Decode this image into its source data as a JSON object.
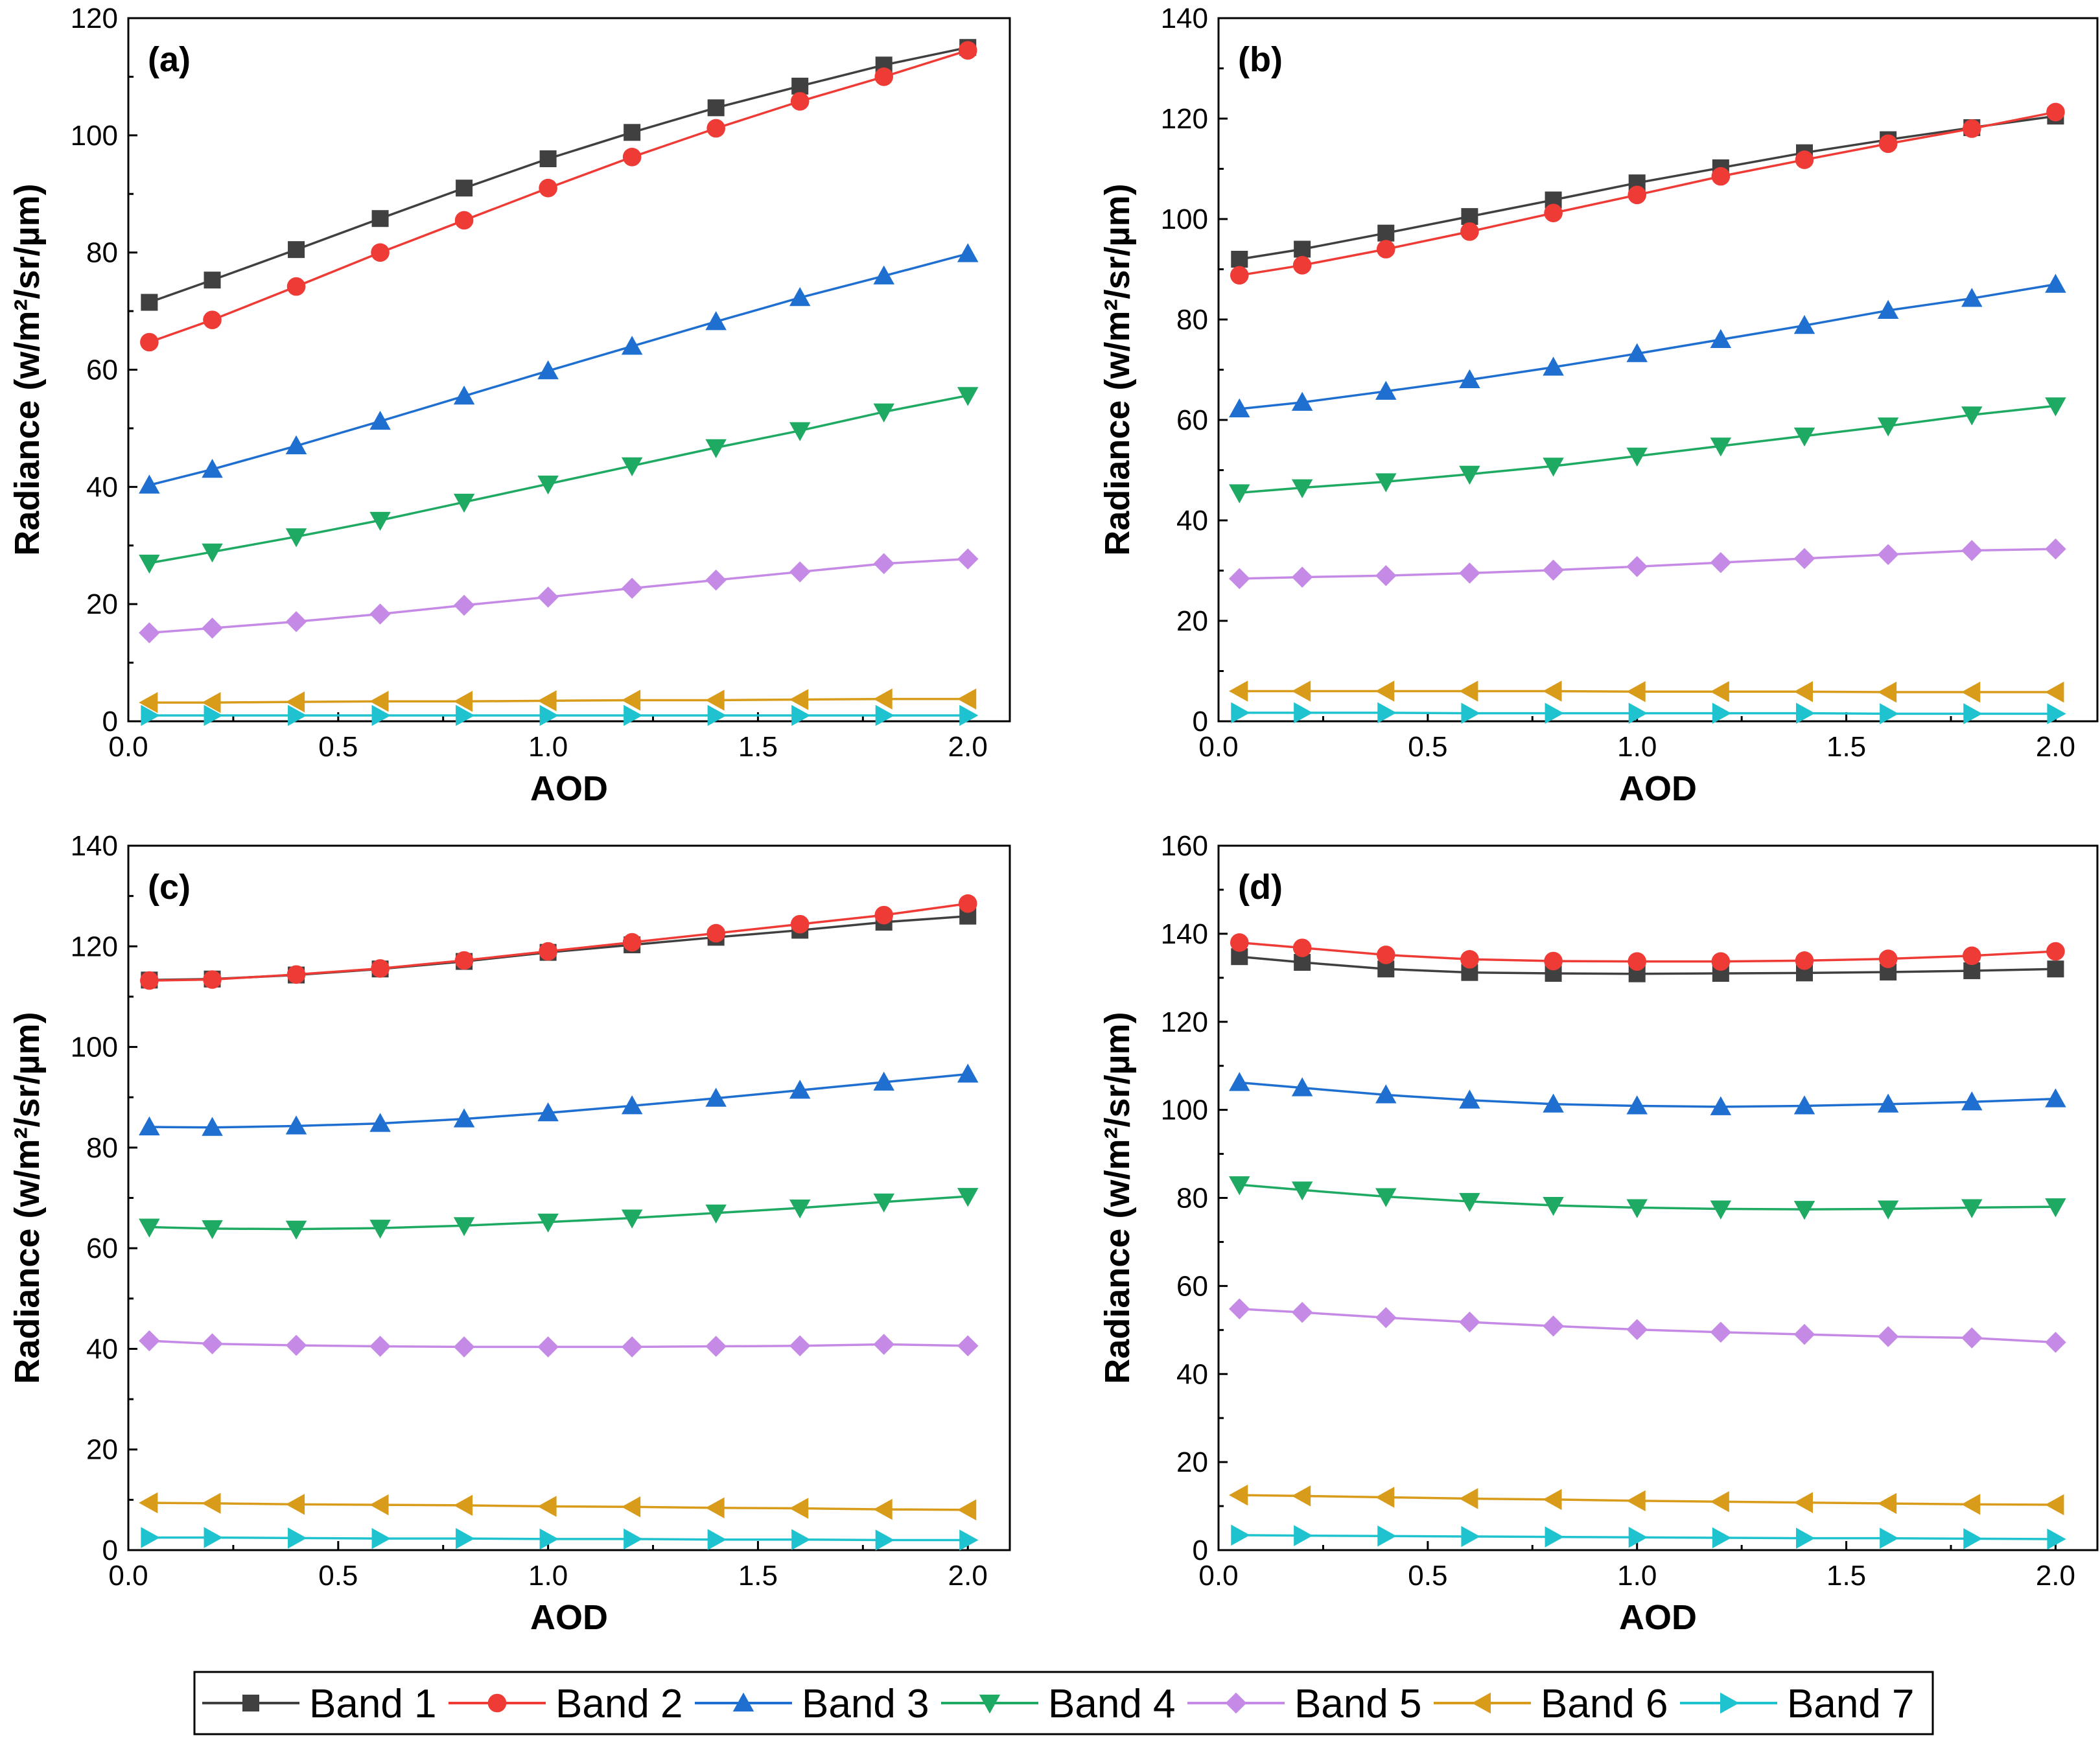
{
  "figure": {
    "band_colors": {
      "Band 1": "#404040",
      "Band 2": "#ef3b36",
      "Band 3": "#1f6fd1",
      "Band 4": "#1faa63",
      "Band 5": "#c58ae6",
      "Band 6": "#d99c1a",
      "Band 7": "#1ec3cf"
    },
    "legend": [
      "Band 1",
      "Band 2",
      "Band 3",
      "Band 4",
      "Band 5",
      "Band 6",
      "Band 7"
    ],
    "markers": {
      "Band 1": "square",
      "Band 2": "circle",
      "Band 3": "triangle-up",
      "Band 4": "triangle-down",
      "Band 5": "diamond",
      "Band 6": "triangle-left",
      "Band 7": "triangle-right"
    }
  },
  "chart_data": [
    {
      "type": "line",
      "panel": "(a)",
      "xlabel": "AOD",
      "ylabel": "Radiance (w/m²/sr/µm)",
      "xlim": [
        0,
        2.1
      ],
      "ylim": [
        0,
        120
      ],
      "xticks": [
        0.0,
        0.5,
        1.0,
        1.5,
        2.0
      ],
      "xtick_labels": [
        "0.0",
        "0.5",
        "1.0",
        "1.5",
        "2.0"
      ],
      "yticks": [
        0,
        20,
        40,
        60,
        80,
        100,
        120
      ],
      "ytick_labels": [
        "0",
        "20",
        "40",
        "60",
        "80",
        "100",
        "120"
      ],
      "x": [
        0.05,
        0.2,
        0.4,
        0.6,
        0.8,
        1.0,
        1.2,
        1.4,
        1.6,
        1.8,
        2.0
      ],
      "series": [
        {
          "name": "Band 1",
          "values": [
            71.5,
            75.3,
            80.5,
            85.8,
            91.0,
            96.0,
            100.5,
            104.7,
            108.4,
            112.0,
            115.0
          ]
        },
        {
          "name": "Band 2",
          "values": [
            64.7,
            68.5,
            74.2,
            80.0,
            85.5,
            91.0,
            96.3,
            101.2,
            105.8,
            110.0,
            114.5
          ]
        },
        {
          "name": "Band 3",
          "values": [
            40.3,
            43.0,
            47.0,
            51.2,
            55.5,
            59.8,
            64.0,
            68.2,
            72.3,
            76.0,
            79.8
          ]
        },
        {
          "name": "Band 4",
          "values": [
            27.0,
            28.9,
            31.5,
            34.3,
            37.4,
            40.5,
            43.6,
            46.7,
            49.6,
            52.8,
            55.6
          ]
        },
        {
          "name": "Band 5",
          "values": [
            15.1,
            15.9,
            17.0,
            18.3,
            19.8,
            21.2,
            22.7,
            24.1,
            25.5,
            26.9,
            27.7
          ]
        },
        {
          "name": "Band 6",
          "values": [
            3.2,
            3.2,
            3.3,
            3.4,
            3.4,
            3.5,
            3.6,
            3.6,
            3.7,
            3.8,
            3.8
          ]
        },
        {
          "name": "Band 7",
          "values": [
            1.0,
            1.0,
            1.0,
            1.0,
            1.0,
            1.0,
            1.0,
            1.0,
            1.0,
            1.0,
            1.0
          ]
        }
      ]
    },
    {
      "type": "line",
      "panel": "(b)",
      "xlabel": "AOD",
      "ylabel": "Radiance (w/m²/sr/µm)",
      "xlim": [
        0,
        2.1
      ],
      "ylim": [
        0,
        140
      ],
      "xticks": [
        0.0,
        0.5,
        1.0,
        1.5,
        2.0
      ],
      "xtick_labels": [
        "0.0",
        "0.5",
        "1.0",
        "1.5",
        "2.0"
      ],
      "yticks": [
        0,
        20,
        40,
        60,
        80,
        100,
        120,
        140
      ],
      "ytick_labels": [
        "0",
        "20",
        "40",
        "60",
        "80",
        "100",
        "120",
        "140"
      ],
      "x": [
        0.05,
        0.2,
        0.4,
        0.6,
        0.8,
        1.0,
        1.2,
        1.4,
        1.6,
        1.8,
        2.0
      ],
      "series": [
        {
          "name": "Band 1",
          "values": [
            92.0,
            94.0,
            97.2,
            100.5,
            103.8,
            107.2,
            110.2,
            113.2,
            115.8,
            118.2,
            120.5
          ]
        },
        {
          "name": "Band 2",
          "values": [
            88.8,
            90.8,
            94.0,
            97.5,
            101.2,
            104.8,
            108.5,
            111.8,
            115.0,
            118.0,
            121.3
          ]
        },
        {
          "name": "Band 3",
          "values": [
            62.2,
            63.5,
            65.7,
            68.0,
            70.5,
            73.2,
            76.0,
            78.8,
            81.8,
            84.2,
            87.0
          ]
        },
        {
          "name": "Band 4",
          "values": [
            45.5,
            46.5,
            47.7,
            49.2,
            50.8,
            52.8,
            54.8,
            56.8,
            58.8,
            61.0,
            62.8
          ]
        },
        {
          "name": "Band 5",
          "values": [
            28.4,
            28.7,
            29.0,
            29.5,
            30.1,
            30.8,
            31.6,
            32.4,
            33.2,
            34.0,
            34.3
          ]
        },
        {
          "name": "Band 6",
          "values": [
            6.0,
            6.0,
            6.0,
            6.0,
            6.0,
            5.9,
            5.9,
            5.9,
            5.8,
            5.8,
            5.8
          ]
        },
        {
          "name": "Band 7",
          "values": [
            1.7,
            1.7,
            1.7,
            1.6,
            1.6,
            1.6,
            1.6,
            1.6,
            1.5,
            1.5,
            1.5
          ]
        }
      ]
    },
    {
      "type": "line",
      "panel": "(c)",
      "xlabel": "AOD",
      "ylabel": "Radiance (w/m²/sr/µm)",
      "xlim": [
        0,
        2.1
      ],
      "ylim": [
        0,
        140
      ],
      "xticks": [
        0.0,
        0.5,
        1.0,
        1.5,
        2.0
      ],
      "xtick_labels": [
        "0.0",
        "0.5",
        "1.0",
        "1.5",
        "2.0"
      ],
      "yticks": [
        0,
        20,
        40,
        60,
        80,
        100,
        120,
        140
      ],
      "ytick_labels": [
        "0",
        "20",
        "40",
        "60",
        "80",
        "100",
        "120",
        "140"
      ],
      "x": [
        0.05,
        0.2,
        0.4,
        0.6,
        0.8,
        1.0,
        1.2,
        1.4,
        1.6,
        1.8,
        2.0
      ],
      "series": [
        {
          "name": "Band 1",
          "values": [
            113.3,
            113.5,
            114.3,
            115.5,
            117.0,
            118.8,
            120.3,
            121.8,
            123.2,
            124.8,
            126.0
          ]
        },
        {
          "name": "Band 2",
          "values": [
            113.2,
            113.4,
            114.4,
            115.6,
            117.2,
            119.0,
            120.8,
            122.6,
            124.4,
            126.2,
            128.5
          ]
        },
        {
          "name": "Band 3",
          "values": [
            84.1,
            84.0,
            84.3,
            84.8,
            85.7,
            86.9,
            88.3,
            89.8,
            91.4,
            93.0,
            94.6
          ]
        },
        {
          "name": "Band 4",
          "values": [
            64.2,
            63.9,
            63.8,
            64.0,
            64.5,
            65.2,
            66.0,
            67.0,
            68.0,
            69.2,
            70.3
          ]
        },
        {
          "name": "Band 5",
          "values": [
            41.6,
            41.0,
            40.7,
            40.5,
            40.4,
            40.4,
            40.4,
            40.5,
            40.6,
            40.9,
            40.6
          ]
        },
        {
          "name": "Band 6",
          "values": [
            9.4,
            9.3,
            9.1,
            9.0,
            8.9,
            8.7,
            8.6,
            8.4,
            8.3,
            8.1,
            8.0
          ]
        },
        {
          "name": "Band 7",
          "values": [
            2.5,
            2.5,
            2.4,
            2.3,
            2.3,
            2.2,
            2.2,
            2.1,
            2.1,
            2.0,
            2.0
          ]
        }
      ]
    },
    {
      "type": "line",
      "panel": "(d)",
      "xlabel": "AOD",
      "ylabel": "Radiance (w/m²/sr/µm)",
      "xlim": [
        0,
        2.1
      ],
      "ylim": [
        0,
        160
      ],
      "xticks": [
        0.0,
        0.5,
        1.0,
        1.5,
        2.0
      ],
      "xtick_labels": [
        "0.0",
        "0.5",
        "1.0",
        "1.5",
        "2.0"
      ],
      "yticks": [
        0,
        20,
        40,
        60,
        80,
        100,
        120,
        140,
        160
      ],
      "ytick_labels": [
        "0",
        "20",
        "40",
        "60",
        "80",
        "100",
        "120",
        "140",
        "160"
      ],
      "x": [
        0.05,
        0.2,
        0.4,
        0.6,
        0.8,
        1.0,
        1.2,
        1.4,
        1.6,
        1.8,
        2.0
      ],
      "series": [
        {
          "name": "Band 1",
          "values": [
            134.8,
            133.5,
            132.0,
            131.2,
            131.0,
            130.9,
            131.0,
            131.1,
            131.3,
            131.6,
            132.0
          ]
        },
        {
          "name": "Band 2",
          "values": [
            138.0,
            136.8,
            135.2,
            134.2,
            133.8,
            133.7,
            133.7,
            133.9,
            134.3,
            135.0,
            136.0
          ]
        },
        {
          "name": "Band 3",
          "values": [
            106.2,
            105.0,
            103.4,
            102.2,
            101.3,
            100.9,
            100.7,
            100.9,
            101.3,
            101.8,
            102.5
          ]
        },
        {
          "name": "Band 4",
          "values": [
            83.0,
            81.8,
            80.3,
            79.2,
            78.3,
            77.8,
            77.5,
            77.4,
            77.5,
            77.8,
            78.0
          ]
        },
        {
          "name": "Band 5",
          "values": [
            54.8,
            54.0,
            52.8,
            51.8,
            50.9,
            50.1,
            49.5,
            49.0,
            48.5,
            48.2,
            47.2
          ]
        },
        {
          "name": "Band 6",
          "values": [
            12.5,
            12.3,
            12.0,
            11.7,
            11.5,
            11.2,
            11.0,
            10.8,
            10.6,
            10.4,
            10.3
          ]
        },
        {
          "name": "Band 7",
          "values": [
            3.4,
            3.3,
            3.2,
            3.1,
            3.0,
            2.9,
            2.8,
            2.7,
            2.7,
            2.6,
            2.5
          ]
        }
      ]
    }
  ]
}
